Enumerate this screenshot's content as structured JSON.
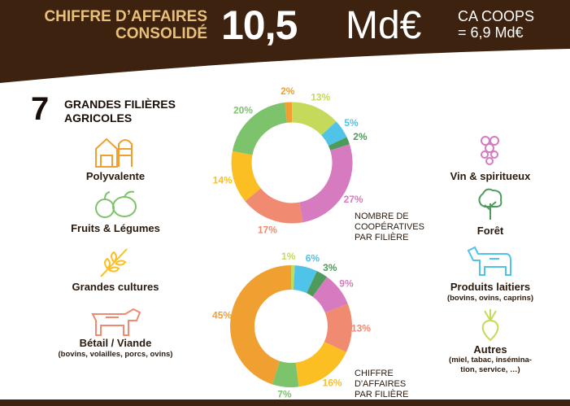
{
  "header": {
    "label_line1": "CHIFFRE D’AFFAIRES",
    "label_line2": "CONSOLIDÉ",
    "value": "10,5",
    "unit": "Md€",
    "coops_line1": "CA COOPS",
    "coops_line2": "= 6,9 Md€"
  },
  "section": {
    "number": "7",
    "title_line1": "GRANDES FILIÈRES",
    "title_line2": "AGRICOLES"
  },
  "sectors": {
    "polyvalente": {
      "label": "Polyvalente",
      "icon": "barn-silo-icon",
      "color": "#f0a030"
    },
    "fruits": {
      "label": "Fruits & Légumes",
      "icon": "fruits-vegetables-icon",
      "color": "#7dc36b"
    },
    "cultures": {
      "label": "Grandes cultures",
      "icon": "wheat-icon",
      "color": "#fbbf24"
    },
    "betail": {
      "label": "Bétail / Viande",
      "sub": "(bovins, volailles, porcs, ovins)",
      "icon": "cow-pig-icon",
      "color": "#f08a70"
    },
    "vin": {
      "label": "Vin & spiritueux",
      "icon": "grapes-icon",
      "color": "#d67bbf"
    },
    "foret": {
      "label": "Forêt",
      "icon": "tree-icon",
      "color": "#4e9a5a"
    },
    "laitiers": {
      "label": "Produits laitiers",
      "sub": "(bovins, ovins, caprins)",
      "icon": "cow-icon",
      "color": "#4fc3e8"
    },
    "autres": {
      "label": "Autres",
      "sub1": "(miel, tabac, insémina-",
      "sub2": "tion, service, …)",
      "icon": "radish-icon",
      "color": "#c5d95a"
    }
  },
  "chart_data": [
    {
      "type": "pie",
      "title_line1": "NOMBRE DE",
      "title_line2": "COOPÉRATIVES",
      "title_line3": "PAR FILIÈRE",
      "categories": [
        "Polyvalente",
        "Autres",
        "Produits laitiers",
        "Forêt",
        "Vin & spiritueux",
        "Bétail / Viande",
        "Grandes cultures",
        "Fruits & Légumes"
      ],
      "values": [
        2,
        13,
        5,
        2,
        27,
        17,
        14,
        20
      ],
      "labels": [
        "2%",
        "13%",
        "5%",
        "2%",
        "27%",
        "17%",
        "14%",
        "20%"
      ],
      "colors": [
        "#f0a030",
        "#c5d95a",
        "#4fc3e8",
        "#4e9a5a",
        "#d67bbf",
        "#f08a70",
        "#fbbf24",
        "#7dc36b"
      ]
    },
    {
      "type": "pie",
      "title_line1": "CHIFFRE",
      "title_line2": "D'AFFAIRES",
      "title_line3": "PAR FILIÈRE",
      "categories": [
        "Autres",
        "Produits laitiers",
        "Forêt",
        "Vin & spiritueux",
        "Bétail / Viande",
        "Grandes cultures",
        "Fruits & Légumes",
        "Polyvalente"
      ],
      "values": [
        1,
        6,
        3,
        9,
        13,
        16,
        7,
        45
      ],
      "labels": [
        "1%",
        "6%",
        "3%",
        "9%",
        "13%",
        "16%",
        "7%",
        "45%"
      ],
      "colors": [
        "#c5d95a",
        "#4fc3e8",
        "#4e9a5a",
        "#d67bbf",
        "#f08a70",
        "#fbbf24",
        "#7dc36b",
        "#f0a030"
      ]
    }
  ]
}
